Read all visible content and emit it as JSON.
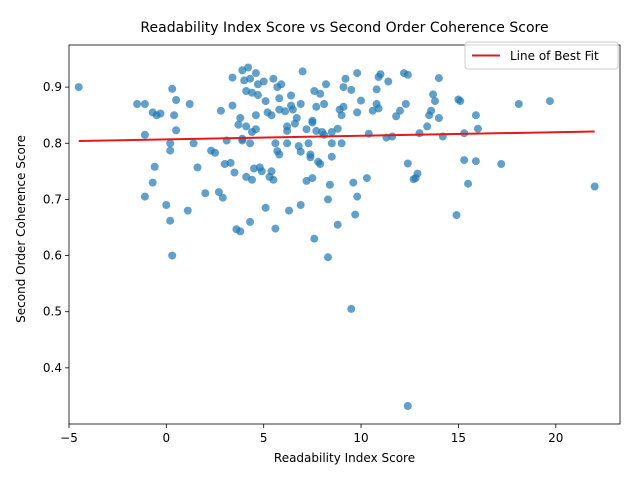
{
  "chart_data": {
    "type": "scatter",
    "title": "Readability Index Score vs Second Order Coherence Score",
    "xlabel": "Readability Index Score",
    "ylabel": "Second Order Coherence Score",
    "xlim": [
      -5.0,
      23.3
    ],
    "ylim": [
      0.3,
      0.975
    ],
    "xticks": [
      -5,
      0,
      5,
      10,
      15,
      20
    ],
    "yticks": [
      0.4,
      0.5,
      0.6,
      0.7,
      0.8,
      0.9
    ],
    "xtick_labels": [
      "−5",
      "0",
      "5",
      "10",
      "15",
      "20"
    ],
    "ytick_labels": [
      "0.4",
      "0.5",
      "0.6",
      "0.7",
      "0.8",
      "0.9"
    ],
    "grid": false,
    "legend": {
      "position": "top-right",
      "entries": [
        {
          "label": "Line of Best Fit",
          "color": "#e31a1c"
        }
      ]
    },
    "scatter_color": "#1f77b4",
    "fit_line": {
      "label": "Line of Best Fit",
      "color": "#e31a1c",
      "x": [
        -4.5,
        22.0
      ],
      "y": [
        0.804,
        0.821
      ]
    },
    "points": [
      [
        -4.5,
        0.9
      ],
      [
        -1.5,
        0.87
      ],
      [
        -1.1,
        0.87
      ],
      [
        -1.1,
        0.815
      ],
      [
        -1.1,
        0.705
      ],
      [
        -0.7,
        0.855
      ],
      [
        -0.7,
        0.73
      ],
      [
        -0.6,
        0.758
      ],
      [
        -0.5,
        0.85
      ],
      [
        -0.3,
        0.853
      ],
      [
        0.0,
        0.69
      ],
      [
        0.2,
        0.662
      ],
      [
        0.2,
        0.8
      ],
      [
        0.2,
        0.787
      ],
      [
        0.3,
        0.6
      ],
      [
        0.3,
        0.897
      ],
      [
        0.4,
        0.85
      ],
      [
        0.5,
        0.823
      ],
      [
        0.5,
        0.877
      ],
      [
        1.1,
        0.68
      ],
      [
        1.2,
        0.87
      ],
      [
        1.4,
        0.8
      ],
      [
        1.6,
        0.757
      ],
      [
        2.0,
        0.711
      ],
      [
        2.3,
        0.787
      ],
      [
        2.5,
        0.783
      ],
      [
        2.7,
        0.713
      ],
      [
        2.8,
        0.858
      ],
      [
        2.9,
        0.703
      ],
      [
        3.0,
        0.763
      ],
      [
        3.1,
        0.805
      ],
      [
        3.3,
        0.765
      ],
      [
        3.4,
        0.867
      ],
      [
        3.4,
        0.917
      ],
      [
        3.5,
        0.748
      ],
      [
        3.6,
        0.647
      ],
      [
        3.7,
        0.833
      ],
      [
        3.8,
        0.643
      ],
      [
        3.8,
        0.845
      ],
      [
        3.9,
        0.808
      ],
      [
        3.9,
        0.805
      ],
      [
        3.9,
        0.93
      ],
      [
        4.0,
        0.912
      ],
      [
        4.1,
        0.893
      ],
      [
        4.1,
        0.74
      ],
      [
        4.1,
        0.83
      ],
      [
        4.2,
        0.935
      ],
      [
        4.3,
        0.915
      ],
      [
        4.3,
        0.66
      ],
      [
        4.3,
        0.8
      ],
      [
        4.4,
        0.82
      ],
      [
        4.4,
        0.89
      ],
      [
        4.4,
        0.735
      ],
      [
        4.5,
        0.755
      ],
      [
        4.6,
        0.925
      ],
      [
        4.6,
        0.85
      ],
      [
        4.6,
        0.825
      ],
      [
        4.7,
        0.905
      ],
      [
        4.7,
        0.886
      ],
      [
        4.8,
        0.757
      ],
      [
        4.9,
        0.75
      ],
      [
        5.0,
        0.91
      ],
      [
        5.1,
        0.875
      ],
      [
        5.1,
        0.685
      ],
      [
        5.2,
        0.855
      ],
      [
        5.3,
        0.74
      ],
      [
        5.4,
        0.85
      ],
      [
        5.4,
        0.75
      ],
      [
        5.5,
        0.915
      ],
      [
        5.5,
        0.735
      ],
      [
        5.6,
        0.648
      ],
      [
        5.6,
        0.8
      ],
      [
        5.7,
        0.786
      ],
      [
        5.7,
        0.9
      ],
      [
        5.8,
        0.78
      ],
      [
        5.8,
        0.86
      ],
      [
        5.8,
        0.88
      ],
      [
        5.9,
        0.905
      ],
      [
        6.1,
        0.857
      ],
      [
        6.2,
        0.83
      ],
      [
        6.2,
        0.822
      ],
      [
        6.2,
        0.8
      ],
      [
        6.3,
        0.68
      ],
      [
        6.4,
        0.867
      ],
      [
        6.4,
        0.885
      ],
      [
        6.5,
        0.86
      ],
      [
        6.6,
        0.835
      ],
      [
        6.7,
        0.845
      ],
      [
        6.8,
        0.795
      ],
      [
        6.9,
        0.69
      ],
      [
        6.9,
        0.87
      ],
      [
        6.9,
        0.785
      ],
      [
        7.0,
        0.928
      ],
      [
        7.2,
        0.733
      ],
      [
        7.2,
        0.825
      ],
      [
        7.3,
        0.8
      ],
      [
        7.4,
        0.775
      ],
      [
        7.4,
        0.78
      ],
      [
        7.5,
        0.84
      ],
      [
        7.5,
        0.837
      ],
      [
        7.5,
        0.738
      ],
      [
        7.6,
        0.893
      ],
      [
        7.6,
        0.63
      ],
      [
        7.7,
        0.822
      ],
      [
        7.7,
        0.865
      ],
      [
        7.8,
        0.767
      ],
      [
        7.9,
        0.888
      ],
      [
        7.9,
        0.763
      ],
      [
        8.0,
        0.82
      ],
      [
        8.1,
        0.815
      ],
      [
        8.1,
        0.87
      ],
      [
        8.2,
        0.905
      ],
      [
        8.3,
        0.597
      ],
      [
        8.3,
        0.7
      ],
      [
        8.4,
        0.726
      ],
      [
        8.5,
        0.82
      ],
      [
        8.5,
        0.8
      ],
      [
        8.5,
        0.776
      ],
      [
        8.8,
        0.655
      ],
      [
        8.8,
        0.826
      ],
      [
        8.9,
        0.86
      ],
      [
        9.0,
        0.85
      ],
      [
        9.0,
        0.8
      ],
      [
        9.1,
        0.865
      ],
      [
        9.1,
        0.9
      ],
      [
        9.2,
        0.915
      ],
      [
        9.5,
        0.505
      ],
      [
        9.5,
        0.895
      ],
      [
        9.6,
        0.73
      ],
      [
        9.7,
        0.673
      ],
      [
        9.8,
        0.855
      ],
      [
        9.8,
        0.705
      ],
      [
        9.8,
        0.925
      ],
      [
        10.0,
        0.876
      ],
      [
        10.3,
        0.738
      ],
      [
        10.4,
        0.817
      ],
      [
        10.6,
        0.858
      ],
      [
        10.8,
        0.87
      ],
      [
        10.8,
        0.896
      ],
      [
        10.9,
        0.918
      ],
      [
        10.9,
        0.862
      ],
      [
        11.0,
        0.923
      ],
      [
        11.3,
        0.81
      ],
      [
        11.4,
        0.91
      ],
      [
        11.6,
        0.812
      ],
      [
        11.8,
        0.848
      ],
      [
        12.0,
        0.858
      ],
      [
        12.2,
        0.925
      ],
      [
        12.3,
        0.87
      ],
      [
        12.4,
        0.764
      ],
      [
        12.4,
        0.922
      ],
      [
        12.4,
        0.332
      ],
      [
        12.7,
        0.736
      ],
      [
        12.8,
        0.738
      ],
      [
        12.9,
        0.746
      ],
      [
        13.0,
        0.818
      ],
      [
        13.4,
        0.83
      ],
      [
        13.5,
        0.85
      ],
      [
        13.6,
        0.858
      ],
      [
        13.7,
        0.887
      ],
      [
        13.8,
        0.875
      ],
      [
        14.0,
        0.845
      ],
      [
        14.0,
        0.916
      ],
      [
        14.2,
        0.812
      ],
      [
        14.9,
        0.672
      ],
      [
        15.0,
        0.878
      ],
      [
        15.1,
        0.875
      ],
      [
        15.3,
        0.818
      ],
      [
        15.3,
        0.77
      ],
      [
        15.5,
        0.728
      ],
      [
        15.9,
        0.85
      ],
      [
        15.9,
        0.768
      ],
      [
        16.0,
        0.826
      ],
      [
        17.2,
        0.763
      ],
      [
        18.1,
        0.87
      ],
      [
        19.7,
        0.875
      ],
      [
        22.0,
        0.723
      ]
    ]
  }
}
